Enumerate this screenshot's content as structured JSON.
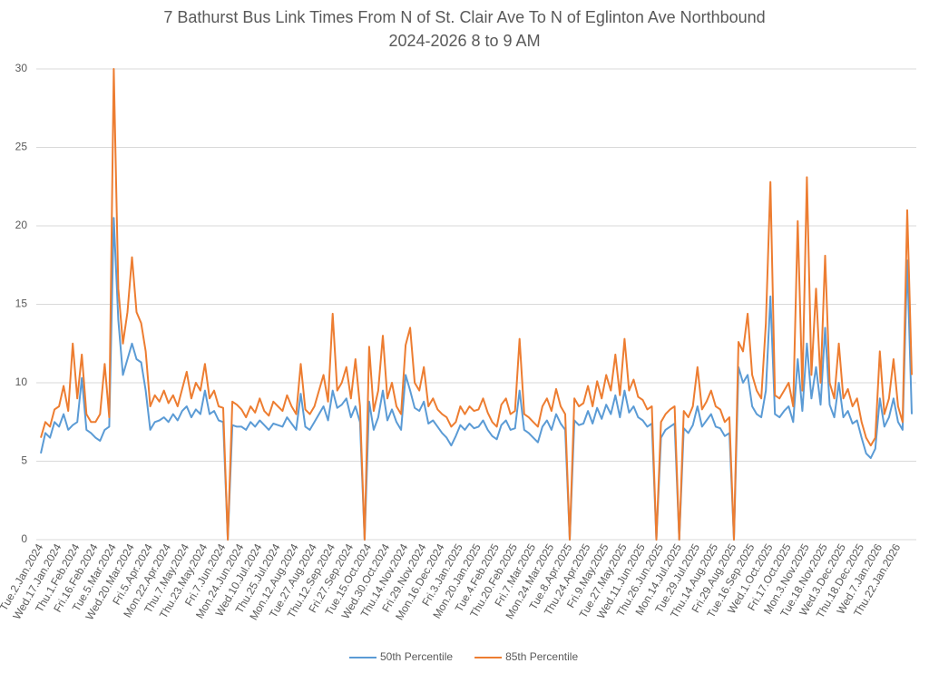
{
  "chart_data": {
    "type": "line",
    "title": "7 Bathurst Bus Link Times From N of St. Clair Ave To N of Eglinton Ave Northbound",
    "subtitle": "2024-2026 8 to 9 AM",
    "categories": [
      "Tue.2.Jan.2024",
      null,
      null,
      null,
      "Wed.17.Jan.2024",
      null,
      null,
      null,
      "Thu.1.Feb.2024",
      null,
      null,
      null,
      "Fri.16.Feb.2024",
      null,
      null,
      null,
      "Tue.5.Mar.2024",
      null,
      null,
      null,
      "Wed.20.Mar.2024",
      null,
      null,
      null,
      "Fri.5.Apr.2024",
      null,
      null,
      null,
      "Mon.22.Apr.2024",
      null,
      null,
      null,
      "Thu.7.May.2024",
      null,
      null,
      null,
      "Thu.23.May.2024",
      null,
      null,
      null,
      "Fri.7.Jun.2024",
      null,
      null,
      null,
      "Mon.24.Jun.2024",
      null,
      null,
      null,
      "Wed.10.Jul.2024",
      null,
      null,
      null,
      "Thu.25.Jul.2024",
      null,
      null,
      null,
      "Mon.12.Aug.2024",
      null,
      null,
      null,
      "Tue.27.Aug.2024",
      null,
      null,
      null,
      "Thu.12.Sep.2024",
      null,
      null,
      null,
      "Fri.27.Sep.2024",
      null,
      null,
      null,
      "Tue.15.Oct.2024",
      null,
      null,
      null,
      "Wed.30.Oct.2024",
      null,
      null,
      null,
      "Thu.14.Nov.2024",
      null,
      null,
      null,
      "Fri.29.Nov.2024",
      null,
      null,
      null,
      "Mon.16.Dec.2024",
      null,
      null,
      null,
      "Fri.3.Jan.2025",
      null,
      null,
      null,
      "Mon.20.Jan.2025",
      null,
      null,
      null,
      "Tue.4.Feb.2025",
      null,
      null,
      null,
      "Thu.20.Feb.2025",
      null,
      null,
      null,
      "Fri.7.Mar.2025",
      null,
      null,
      null,
      "Mon.24.Mar.2025",
      null,
      null,
      null,
      "Tue.8.Apr.2025",
      null,
      null,
      null,
      "Thu.24.Apr.2025",
      null,
      null,
      null,
      "Fri.9.May.2025",
      null,
      null,
      null,
      "Tue.27.May.2025",
      null,
      null,
      null,
      "Wed.11.Jun.2025",
      null,
      null,
      null,
      "Thu.26.Jun.2025",
      null,
      null,
      null,
      "Mon.14.Jul.2025",
      null,
      null,
      null,
      "Tue.29.Jul.2025",
      null,
      null,
      null,
      "Thu.14.Aug.2025",
      null,
      null,
      null,
      "Fri.29.Aug.2025",
      null,
      null,
      null,
      "Tue.16.Sep.2025",
      null,
      null,
      null,
      "Wed.1.Oct.2025",
      null,
      null,
      null,
      "Fri.17.Oct.2025",
      null,
      null,
      null,
      "Mon.3.Nov.2025",
      null,
      null,
      null,
      "Tue.18.Nov.2025",
      null,
      null,
      null,
      "Wed.3.Dec.2025",
      null,
      null,
      null,
      "Thu.18.Dec.2025",
      null,
      null,
      null,
      "Wed.7.Jan.2026",
      null,
      null,
      null,
      "Thu.22.Jan.2026",
      null,
      null,
      null
    ],
    "series": [
      {
        "name": "50th Percentile",
        "color": "#5b9bd5",
        "values": [
          5.5,
          6.8,
          6.5,
          7.5,
          7.2,
          8,
          7,
          7.3,
          7.5,
          10.3,
          7,
          6.8,
          6.5,
          6.3,
          7,
          7.2,
          20.5,
          14,
          10.5,
          11.5,
          12.5,
          11.5,
          11.3,
          9.5,
          7,
          7.5,
          7.6,
          7.8,
          7.5,
          8,
          7.6,
          8.2,
          8.5,
          7.8,
          8.3,
          8,
          9.5,
          8,
          8.2,
          7.6,
          7.5,
          0,
          7.3,
          7.2,
          7.2,
          7,
          7.5,
          7.2,
          7.6,
          7.3,
          7,
          7.4,
          7.3,
          7.2,
          7.8,
          7.4,
          7,
          9.3,
          7.2,
          7,
          7.5,
          8,
          8.5,
          7.6,
          9.5,
          8.4,
          8.6,
          9,
          7.8,
          8.5,
          7.5,
          0,
          8.8,
          7,
          7.8,
          9.5,
          7.6,
          8.3,
          7.5,
          7,
          10.5,
          9.5,
          8.4,
          8.2,
          8.8,
          7.4,
          7.6,
          7.2,
          6.8,
          6.5,
          6,
          6.6,
          7.3,
          7,
          7.4,
          7.1,
          7.2,
          7.6,
          7,
          6.6,
          6.4,
          7.3,
          7.6,
          7,
          7.1,
          9.5,
          7,
          6.8,
          6.5,
          6.2,
          7.2,
          7.6,
          7,
          8,
          7.4,
          7,
          0,
          7.6,
          7.3,
          7.4,
          8.2,
          7.4,
          8.4,
          7.7,
          8.6,
          8,
          9.2,
          7.8,
          9.5,
          8.1,
          8.5,
          7.8,
          7.6,
          7.2,
          7.4,
          0,
          6.5,
          7,
          7.2,
          7.4,
          0,
          7.1,
          6.8,
          7.3,
          8.5,
          7.2,
          7.6,
          8,
          7.2,
          7.1,
          6.6,
          6.8,
          0,
          11,
          10,
          10.5,
          8.5,
          8,
          7.8,
          9.5,
          15.5,
          8,
          7.8,
          8.2,
          8.5,
          7.5,
          11.5,
          8.2,
          12.5,
          9,
          11,
          8.6,
          13.5,
          8.6,
          7.8,
          10,
          7.8,
          8.2,
          7.4,
          7.6,
          6.5,
          5.5,
          5.2,
          5.8,
          9,
          7.2,
          7.8,
          9,
          7.5,
          7,
          17.8,
          8
        ]
      },
      {
        "name": "85th Percentile",
        "color": "#ed7d31",
        "values": [
          6.5,
          7.5,
          7.2,
          8.3,
          8.5,
          9.8,
          8.2,
          12.5,
          9,
          11.8,
          8,
          7.5,
          7.5,
          8,
          11.2,
          7.8,
          30,
          16,
          12.5,
          14.5,
          18,
          14.5,
          13.8,
          12,
          8.5,
          9.2,
          8.8,
          9.5,
          8.7,
          9.2,
          8.5,
          9.6,
          10.7,
          9,
          10,
          9.5,
          11.2,
          9,
          9.5,
          8.5,
          8.4,
          0,
          8.8,
          8.6,
          8.3,
          7.8,
          8.5,
          8.1,
          9,
          8.2,
          7.9,
          8.8,
          8.5,
          8.2,
          9.2,
          8.5,
          8,
          11.2,
          8.3,
          8,
          8.5,
          9.5,
          10.5,
          8.8,
          14.4,
          9.5,
          10,
          11,
          9,
          11.5,
          8.5,
          0,
          12.3,
          8.2,
          9.5,
          13,
          9,
          10,
          8.5,
          8,
          12.4,
          13.5,
          10,
          9.5,
          11,
          8.5,
          9,
          8.3,
          8,
          7.8,
          7.2,
          7.5,
          8.5,
          8,
          8.5,
          8.2,
          8.3,
          9,
          8.1,
          7.5,
          7.2,
          8.6,
          9,
          8,
          8.2,
          12.8,
          8,
          7.8,
          7.5,
          7.2,
          8.5,
          9,
          8.2,
          9.6,
          8.5,
          8,
          0,
          9,
          8.5,
          8.7,
          9.8,
          8.5,
          10.1,
          9,
          10.5,
          9.5,
          11.8,
          9.2,
          12.8,
          9.5,
          10.2,
          9.1,
          8.9,
          8.3,
          8.5,
          0,
          7.5,
          8,
          8.3,
          8.5,
          0,
          8.2,
          7.8,
          8.5,
          11,
          8.3,
          8.8,
          9.5,
          8.5,
          8.3,
          7.5,
          7.8,
          0,
          12.6,
          12,
          14.4,
          10.5,
          9.5,
          9,
          13.8,
          22.8,
          9.2,
          9,
          9.5,
          10,
          8.5,
          20.3,
          9.5,
          23.1,
          10.5,
          16,
          10,
          18.1,
          10,
          9,
          12.5,
          9,
          9.6,
          8.5,
          9,
          7.5,
          6.5,
          6,
          6.5,
          12,
          8,
          9,
          11.5,
          8.5,
          7.5,
          21,
          10.5
        ]
      }
    ],
    "ylim": [
      0,
      30
    ],
    "yticks": [
      0,
      5,
      10,
      15,
      20,
      25,
      30
    ],
    "grid": true,
    "legend": "bottom"
  }
}
